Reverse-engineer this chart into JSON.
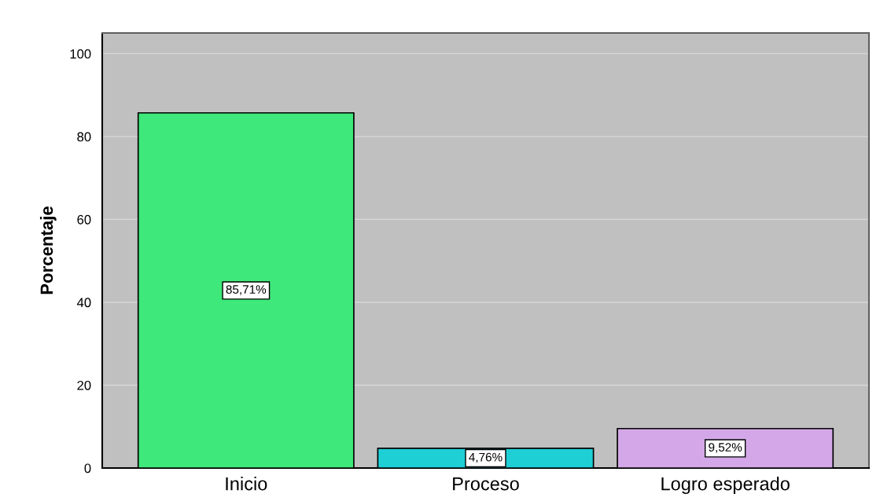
{
  "chart_data": {
    "type": "bar",
    "ylabel": "Porcentaje",
    "categories": [
      "Inicio",
      "Proceso",
      "Logro esperado"
    ],
    "values": [
      85.71,
      4.76,
      9.52
    ],
    "colors": [
      "#3ee87a",
      "#1ecfd6",
      "#d4a8e8"
    ],
    "value_labels": [
      "85,71%",
      "4,76%",
      "9,52%"
    ],
    "ylim": [
      0,
      105
    ],
    "yticks": [
      0,
      20,
      40,
      60,
      80,
      100
    ],
    "grid": "y",
    "legend": false
  }
}
